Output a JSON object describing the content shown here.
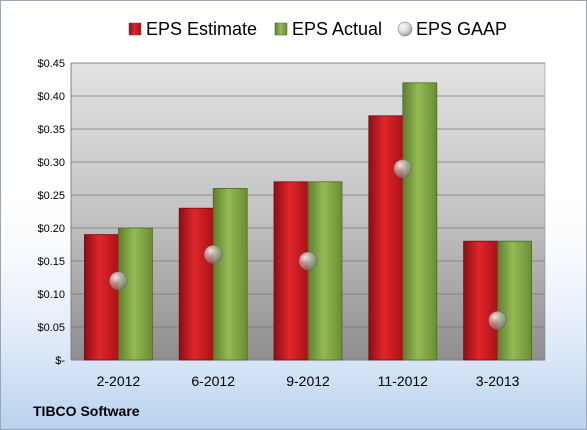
{
  "chart_data": {
    "type": "bar",
    "categories": [
      "2-2012",
      "6-2012",
      "9-2012",
      "11-2012",
      "3-2013"
    ],
    "series": [
      {
        "name": "EPS Estimate",
        "values": [
          0.19,
          0.23,
          0.27,
          0.37,
          0.18
        ],
        "color": "#c8161d"
      },
      {
        "name": "EPS Actual",
        "values": [
          0.2,
          0.26,
          0.27,
          0.42,
          0.18
        ],
        "color": "#7fa444"
      },
      {
        "name": "EPS GAAP",
        "values": [
          0.12,
          0.16,
          0.15,
          0.29,
          0.06
        ],
        "color": "#b0b8c4",
        "marker": "circle"
      }
    ],
    "y_ticks": [
      "$-",
      "$0.05",
      "$0.10",
      "$0.15",
      "$0.20",
      "$0.25",
      "$0.30",
      "$0.35",
      "$0.40",
      "$0.45"
    ],
    "ylim": [
      0,
      0.45
    ],
    "grid": true,
    "legend_position": "top"
  },
  "footer": {
    "company": "TIBCO Software"
  }
}
